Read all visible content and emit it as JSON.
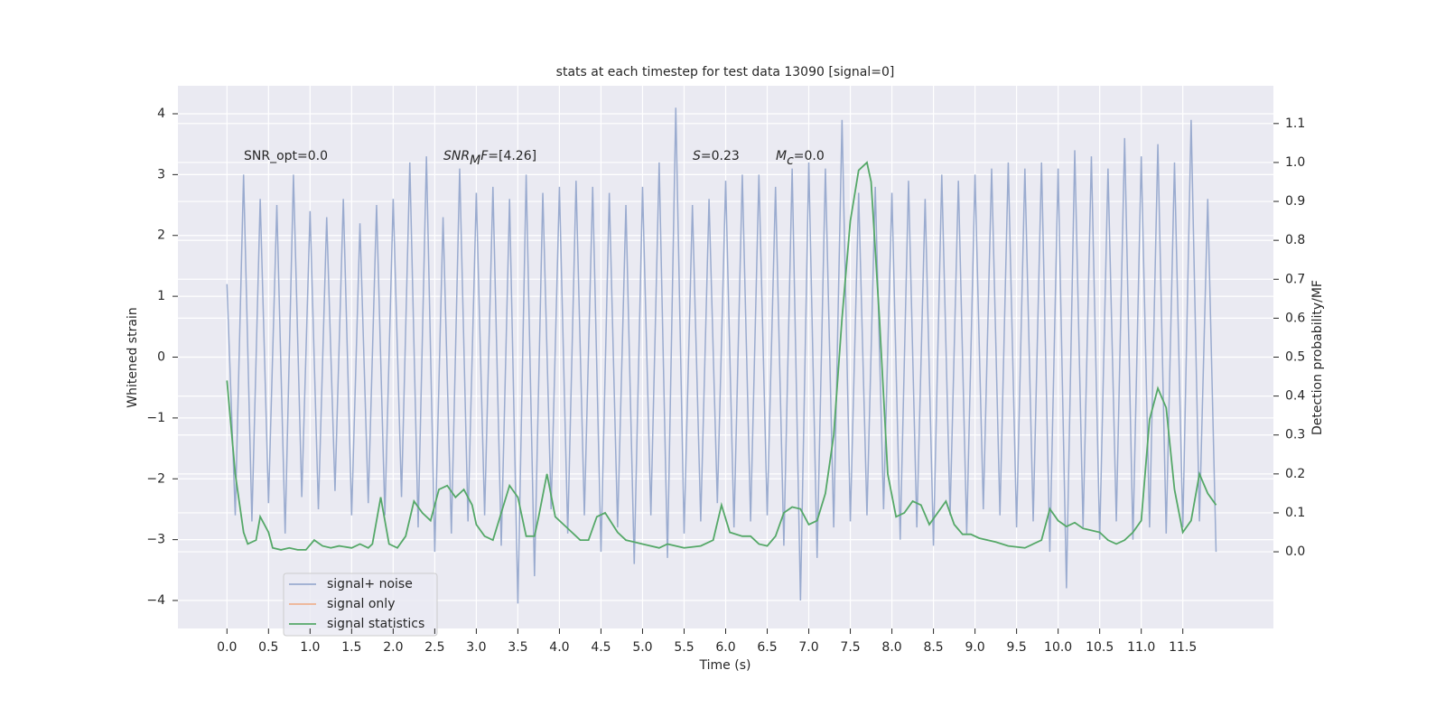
{
  "chart_data": {
    "type": "line",
    "title": "stats at each timestep for test data 13090 [signal=0]",
    "x_label": "Time (s)",
    "y_label": "Whitened strain",
    "y2_label": "Detection probability/MF",
    "xlim": [
      -0.59,
      12.59
    ],
    "ylim": [
      -4.46,
      4.46
    ],
    "y2lim": [
      -0.197,
      1.197
    ],
    "grid": true,
    "background": "#eaeaf2",
    "legend_position": "lower left",
    "xticks": [
      {
        "value": 0,
        "label": "0.0"
      },
      {
        "value": 0.5,
        "label": "0.5"
      },
      {
        "value": 1,
        "label": "1.0"
      },
      {
        "value": 1.5,
        "label": "1.5"
      },
      {
        "value": 2,
        "label": "2.0"
      },
      {
        "value": 2.5,
        "label": "2.5"
      },
      {
        "value": 3,
        "label": "3.0"
      },
      {
        "value": 3.5,
        "label": "3.5"
      },
      {
        "value": 4,
        "label": "4.0"
      },
      {
        "value": 4.5,
        "label": "4.5"
      },
      {
        "value": 5,
        "label": "5.0"
      },
      {
        "value": 5.5,
        "label": "5.5"
      },
      {
        "value": 6,
        "label": "6.0"
      },
      {
        "value": 6.5,
        "label": "6.5"
      },
      {
        "value": 7,
        "label": "7.0"
      },
      {
        "value": 7.5,
        "label": "7.5"
      },
      {
        "value": 8,
        "label": "8.0"
      },
      {
        "value": 8.5,
        "label": "8.5"
      },
      {
        "value": 9,
        "label": "9.0"
      },
      {
        "value": 9.5,
        "label": "9.5"
      },
      {
        "value": 10,
        "label": "10.0"
      },
      {
        "value": 10.5,
        "label": "10.5"
      },
      {
        "value": 11,
        "label": "11.0"
      },
      {
        "value": 11.5,
        "label": "11.5"
      }
    ],
    "yticks": [
      {
        "value": -4,
        "label": "−4"
      },
      {
        "value": -3,
        "label": "−3"
      },
      {
        "value": -2,
        "label": "−2"
      },
      {
        "value": -1,
        "label": "−1"
      },
      0,
      1,
      2,
      3,
      4
    ],
    "y2ticks": [
      {
        "value": 0,
        "label": "0.0"
      },
      {
        "value": 0.1,
        "label": "0.1"
      },
      {
        "value": 0.2,
        "label": "0.2"
      },
      {
        "value": 0.3,
        "label": "0.3"
      },
      {
        "value": 0.4,
        "label": "0.4"
      },
      {
        "value": 0.5,
        "label": "0.5"
      },
      {
        "value": 0.6,
        "label": "0.6"
      },
      {
        "value": 0.7,
        "label": "0.7"
      },
      {
        "value": 0.8,
        "label": "0.8"
      },
      {
        "value": 0.9,
        "label": "0.9"
      },
      {
        "value": 1,
        "label": "1.0"
      },
      {
        "value": 1.1,
        "label": "1.1"
      }
    ],
    "annotations": [
      {
        "parts": [
          {
            "text": "SNR_opt=0.0",
            "style": "normal"
          }
        ]
      },
      {
        "parts": [
          {
            "text": "SNR",
            "style": "italic"
          },
          {
            "text": "M",
            "style": "sub"
          },
          {
            "text": "F",
            "style": "italic"
          },
          {
            "text": "=[4.26]",
            "style": "normal"
          }
        ]
      },
      {
        "parts": [
          {
            "text": "S",
            "style": "italic"
          },
          {
            "text": "=0.23",
            "style": "normal"
          }
        ]
      },
      {
        "parts": [
          {
            "text": "M",
            "style": "italic"
          },
          {
            "text": "c",
            "style": "sub"
          },
          {
            "text": "=0.0",
            "style": "normal"
          }
        ]
      }
    ],
    "series": [
      {
        "name": "signal+ noise",
        "color": "#9aabcf",
        "axis": "y",
        "x": [
          0,
          0.1,
          0.2,
          0.3,
          0.4,
          0.5,
          0.6,
          0.7,
          0.8,
          0.9,
          1,
          1.1,
          1.2,
          1.3,
          1.4,
          1.5,
          1.6,
          1.7,
          1.8,
          1.9,
          2,
          2.1,
          2.2,
          2.3,
          2.4,
          2.5,
          2.6,
          2.7,
          2.8,
          2.9,
          3,
          3.1,
          3.2,
          3.3,
          3.4,
          3.5,
          3.6,
          3.7,
          3.8,
          3.9,
          4,
          4.1,
          4.2,
          4.3,
          4.4,
          4.5,
          4.6,
          4.7,
          4.8,
          4.9,
          5,
          5.1,
          5.2,
          5.3,
          5.4,
          5.5,
          5.6,
          5.7,
          5.8,
          5.9,
          6,
          6.1,
          6.2,
          6.3,
          6.4,
          6.5,
          6.6,
          6.7,
          6.8,
          6.9,
          7,
          7.1,
          7.2,
          7.3,
          7.4,
          7.5,
          7.6,
          7.7,
          7.8,
          7.9,
          8,
          8.1,
          8.2,
          8.3,
          8.4,
          8.5,
          8.6,
          8.7,
          8.8,
          8.9,
          9,
          9.1,
          9.2,
          9.3,
          9.4,
          9.5,
          9.6,
          9.7,
          9.8,
          9.9,
          10,
          10.1,
          10.2,
          10.3,
          10.4,
          10.5,
          10.6,
          10.7,
          10.8,
          10.9,
          11,
          11.1,
          11.2,
          11.3,
          11.4,
          11.5,
          11.6,
          11.7,
          11.8,
          11.9
        ],
        "values": [
          1.2,
          -2.6,
          3.0,
          -2.7,
          2.6,
          -2.4,
          2.5,
          -2.9,
          3.0,
          -2.3,
          2.4,
          -2.5,
          2.3,
          -2.2,
          2.6,
          -2.6,
          2.2,
          -2.4,
          2.5,
          -2.6,
          2.6,
          -2.3,
          3.2,
          -2.8,
          3.3,
          -3.2,
          2.3,
          -2.9,
          3.1,
          -2.7,
          2.7,
          -2.6,
          2.8,
          -3.1,
          2.6,
          -4.05,
          3.0,
          -3.6,
          2.7,
          -2.5,
          2.8,
          -2.9,
          2.9,
          -2.6,
          2.8,
          -3.2,
          2.7,
          -2.8,
          2.5,
          -3.4,
          2.8,
          -2.6,
          3.2,
          -3.3,
          4.1,
          -2.9,
          2.5,
          -2.7,
          2.6,
          -2.4,
          2.9,
          -2.8,
          3.0,
          -2.7,
          3.0,
          -2.6,
          2.8,
          -3.1,
          3.1,
          -4.0,
          3.2,
          -3.3,
          3.1,
          -2.8,
          3.9,
          -2.7,
          2.7,
          -2.6,
          2.8,
          -2.5,
          2.7,
          -3.0,
          2.9,
          -2.8,
          2.6,
          -3.1,
          3.0,
          -2.6,
          2.9,
          -2.9,
          3.0,
          -2.5,
          3.1,
          -2.6,
          3.2,
          -2.8,
          3.1,
          -2.7,
          3.2,
          -3.2,
          3.1,
          -3.8,
          3.4,
          -2.8,
          3.3,
          -3.0,
          3.1,
          -2.7,
          3.6,
          -3.0,
          3.3,
          -2.8,
          3.5,
          -2.9,
          3.2,
          -2.8,
          3.9,
          -2.7,
          2.6,
          -3.2
        ]
      },
      {
        "name": "signal only",
        "color": "#eeb291",
        "axis": "y"
      },
      {
        "name": "signal statistics",
        "color": "#55a868",
        "axis": "y2",
        "x": [
          0,
          0.1,
          0.2,
          0.25,
          0.35,
          0.4,
          0.5,
          0.55,
          0.65,
          0.75,
          0.85,
          0.95,
          1.05,
          1.15,
          1.25,
          1.35,
          1.5,
          1.6,
          1.7,
          1.75,
          1.85,
          1.95,
          2.05,
          2.15,
          2.25,
          2.35,
          2.45,
          2.55,
          2.65,
          2.75,
          2.85,
          2.95,
          3,
          3.1,
          3.2,
          3.3,
          3.4,
          3.5,
          3.6,
          3.7,
          3.75,
          3.85,
          3.95,
          4.05,
          4.15,
          4.25,
          4.35,
          4.45,
          4.55,
          4.7,
          4.8,
          4.9,
          5,
          5.2,
          5.3,
          5.5,
          5.7,
          5.85,
          5.95,
          6.05,
          6.2,
          6.3,
          6.4,
          6.5,
          6.6,
          6.7,
          6.8,
          6.9,
          7,
          7.1,
          7.2,
          7.3,
          7.4,
          7.5,
          7.6,
          7.7,
          7.75,
          7.85,
          7.95,
          8.05,
          8.15,
          8.25,
          8.35,
          8.45,
          8.55,
          8.65,
          8.75,
          8.85,
          8.95,
          9.05,
          9.15,
          9.25,
          9.4,
          9.6,
          9.8,
          9.9,
          10,
          10.1,
          10.2,
          10.3,
          10.4,
          10.5,
          10.6,
          10.7,
          10.8,
          10.9,
          11,
          11.1,
          11.2,
          11.3,
          11.4,
          11.5,
          11.6,
          11.7,
          11.8,
          11.9
        ],
        "values": [
          0.44,
          0.2,
          0.05,
          0.02,
          0.03,
          0.09,
          0.05,
          0.01,
          0.005,
          0.01,
          0.005,
          0.005,
          0.03,
          0.015,
          0.01,
          0.015,
          0.01,
          0.02,
          0.01,
          0.02,
          0.14,
          0.02,
          0.01,
          0.04,
          0.13,
          0.1,
          0.08,
          0.16,
          0.17,
          0.14,
          0.16,
          0.12,
          0.07,
          0.04,
          0.03,
          0.1,
          0.17,
          0.14,
          0.04,
          0.04,
          0.09,
          0.2,
          0.09,
          0.07,
          0.05,
          0.03,
          0.03,
          0.09,
          0.1,
          0.05,
          0.03,
          0.025,
          0.02,
          0.01,
          0.02,
          0.01,
          0.015,
          0.03,
          0.12,
          0.05,
          0.04,
          0.04,
          0.02,
          0.015,
          0.04,
          0.1,
          0.115,
          0.11,
          0.07,
          0.08,
          0.15,
          0.3,
          0.6,
          0.85,
          0.98,
          1.0,
          0.95,
          0.6,
          0.2,
          0.09,
          0.1,
          0.13,
          0.12,
          0.07,
          0.1,
          0.13,
          0.07,
          0.045,
          0.045,
          0.035,
          0.03,
          0.025,
          0.015,
          0.01,
          0.03,
          0.11,
          0.08,
          0.065,
          0.075,
          0.06,
          0.055,
          0.05,
          0.03,
          0.02,
          0.03,
          0.05,
          0.08,
          0.34,
          0.42,
          0.37,
          0.16,
          0.05,
          0.08,
          0.2,
          0.15,
          0.12
        ]
      }
    ]
  }
}
